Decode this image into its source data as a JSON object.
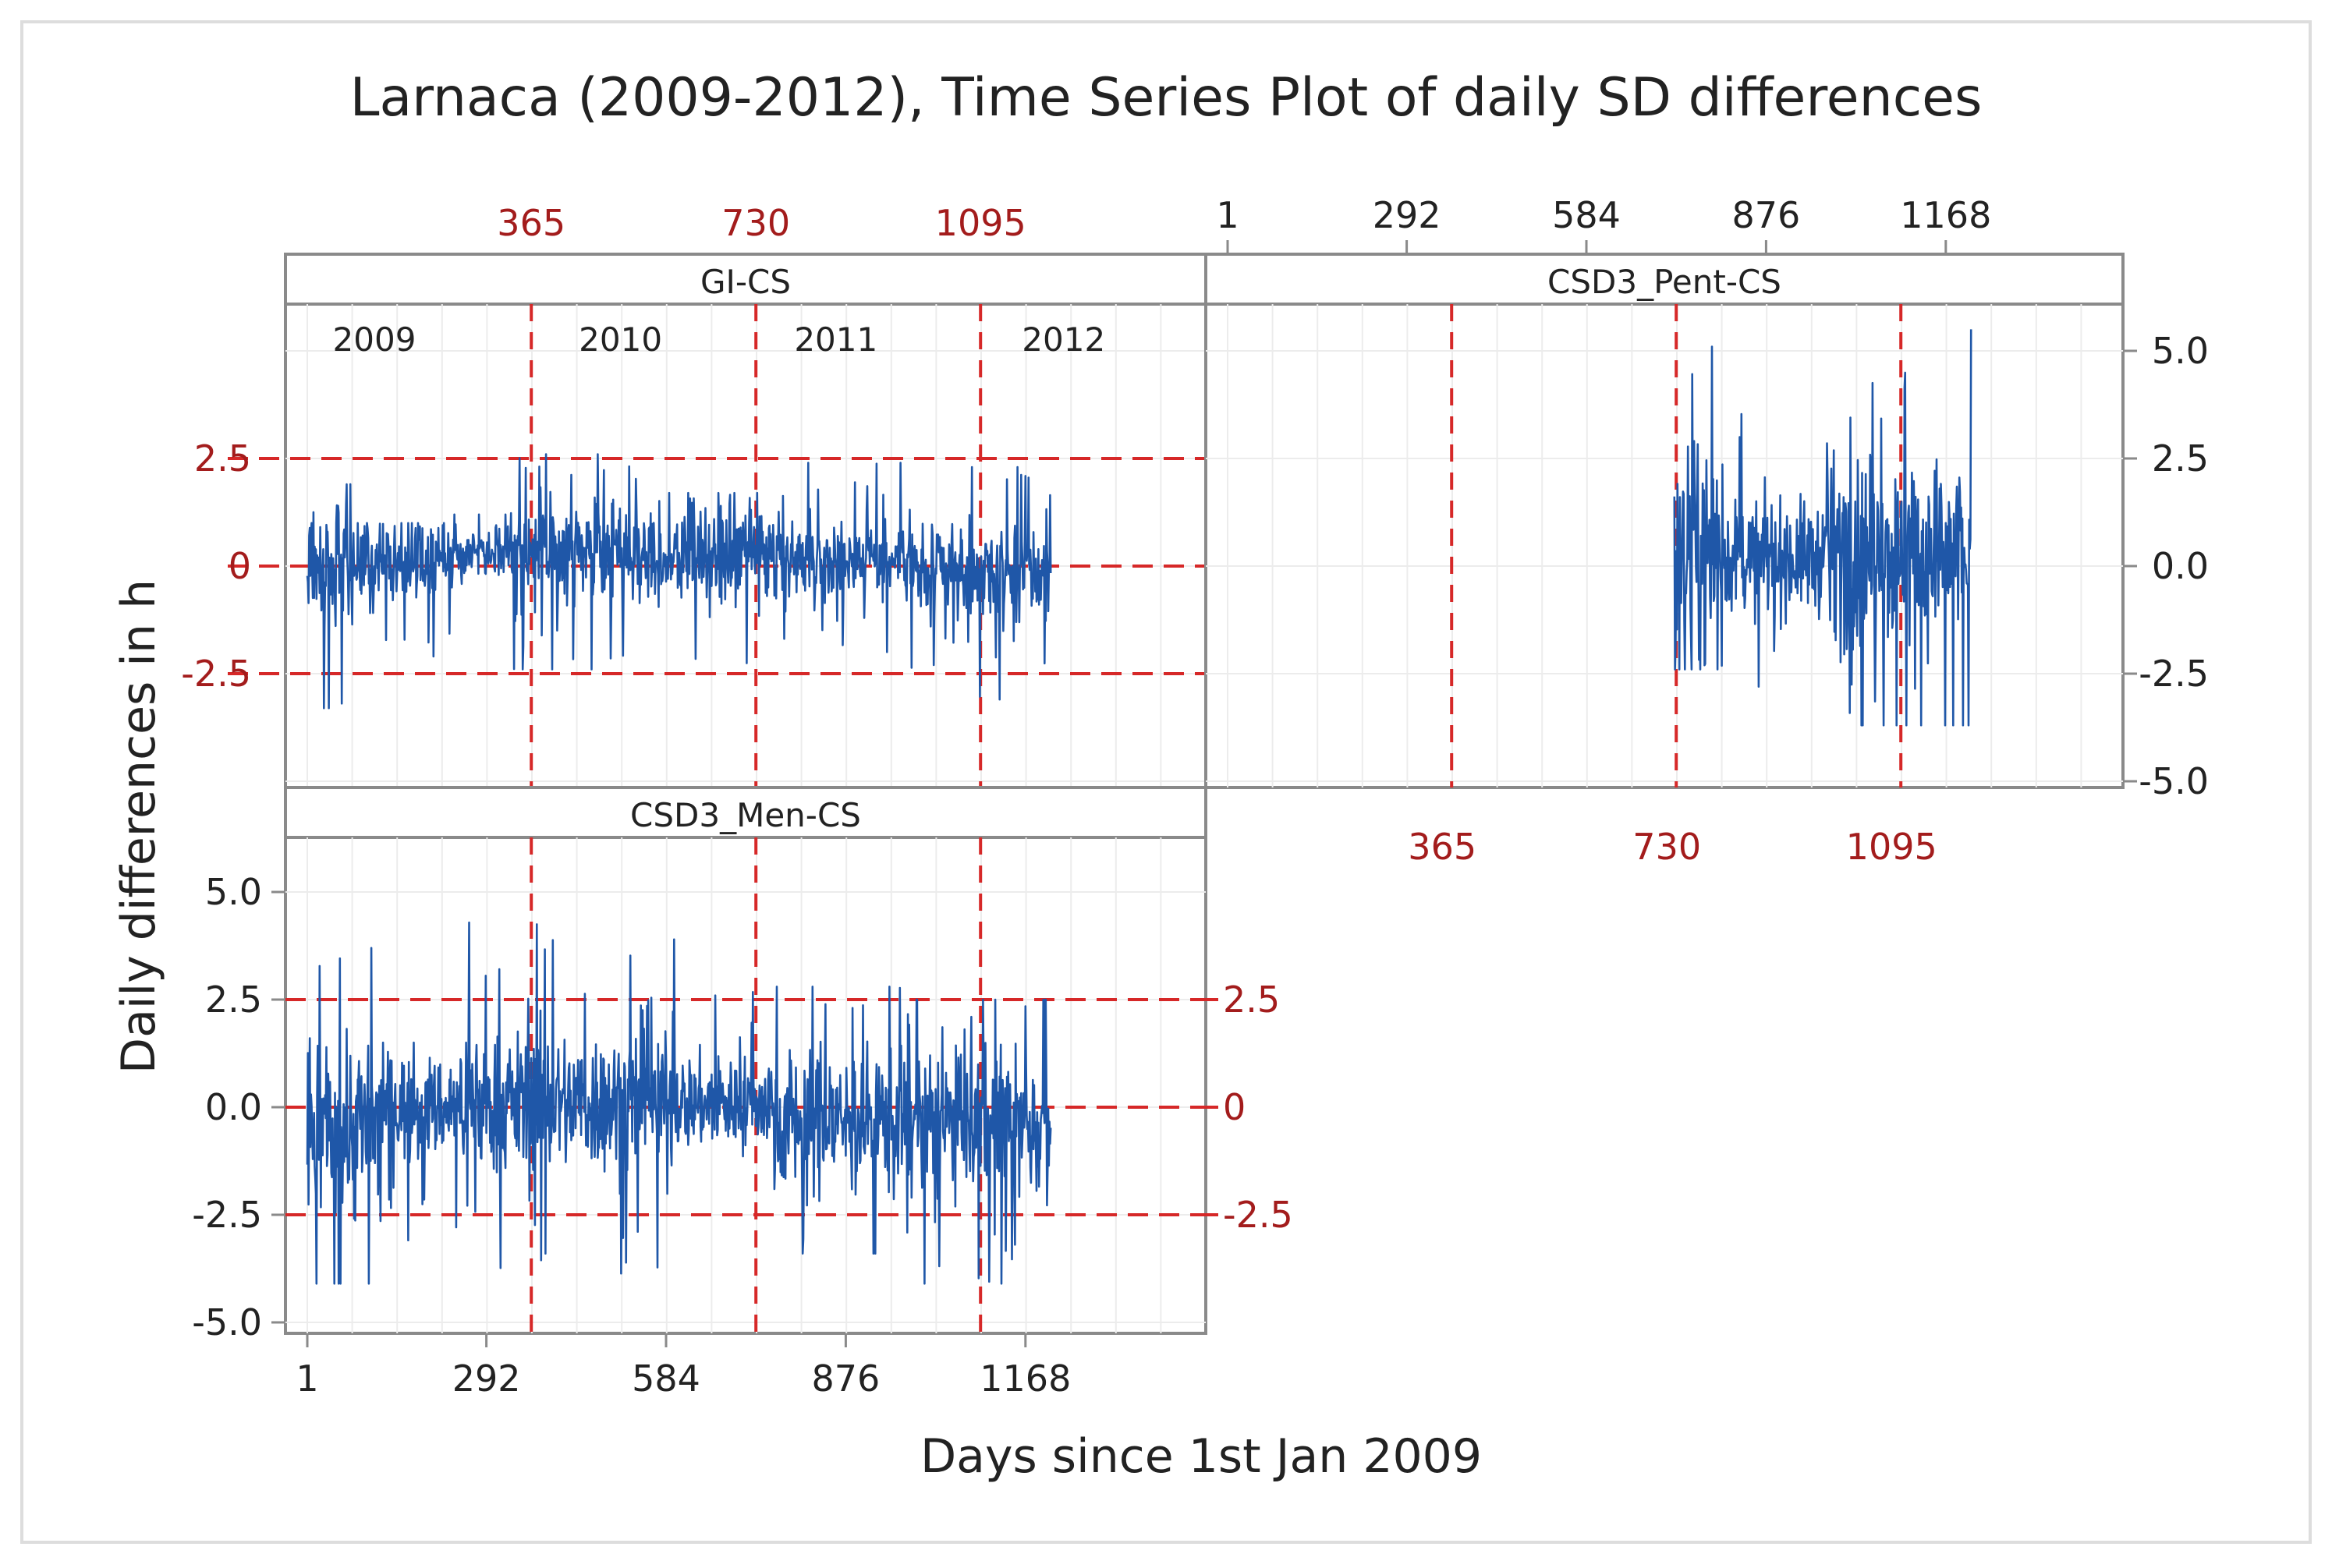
{
  "figure": {
    "title": "Larnaca (2009-2012), Time Series Plot of daily SD differences",
    "ylabel": "Daily differences in h",
    "xlabel": "Days since 1st Jan 2009"
  },
  "colors": {
    "series": "#1f57a8",
    "reference": "#d62828",
    "reference_text": "#a31c1c",
    "frame": "#8a8a8a",
    "grid": "#ececec",
    "text": "#222222"
  },
  "chart_data": {
    "type": "line",
    "subtype": "paneled time series",
    "x_range": [
      1,
      1461
    ],
    "y_range": [
      -6,
      6
    ],
    "x_ticks": [
      1,
      292,
      584,
      876,
      1168
    ],
    "y_ticks_primary": [
      "5.0",
      "2.5",
      "0.0",
      "-2.5",
      "-5.0"
    ],
    "reference_lines": {
      "x": [
        365,
        730,
        1095
      ],
      "x_labels": [
        "365",
        "730",
        "1095"
      ],
      "y": [
        2.5,
        0,
        -2.5
      ],
      "y_labels": [
        "2.5",
        "0",
        "-2.5"
      ]
    },
    "year_labels": [
      {
        "label": "2009",
        "x": 110
      },
      {
        "label": "2010",
        "x": 510
      },
      {
        "label": "2011",
        "x": 860
      },
      {
        "label": "2012",
        "x": 1230
      }
    ],
    "grid": true,
    "panels": [
      {
        "name": "GI-CS",
        "data_range": [
          1,
          1210
        ],
        "observed_range": [
          -3.3,
          2.6
        ],
        "segments": [
          {
            "from": 1,
            "to": 80,
            "level": 0.0,
            "spread": 0.7,
            "min": -3.3,
            "max": 1.9
          },
          {
            "from": 80,
            "to": 240,
            "level": 0.1,
            "spread": 0.45,
            "min": -2.1,
            "max": 1.0
          },
          {
            "from": 240,
            "to": 330,
            "level": 0.4,
            "spread": 0.3,
            "min": -0.6,
            "max": 1.2
          },
          {
            "from": 330,
            "to": 560,
            "level": 0.3,
            "spread": 0.55,
            "min": -2.4,
            "max": 2.6
          },
          {
            "from": 560,
            "to": 760,
            "level": 0.2,
            "spread": 0.5,
            "min": -2.4,
            "max": 1.7
          },
          {
            "from": 760,
            "to": 980,
            "level": 0.2,
            "spread": 0.45,
            "min": -2.3,
            "max": 2.4
          },
          {
            "from": 980,
            "to": 1210,
            "level": -0.2,
            "spread": 0.55,
            "min": -3.1,
            "max": 2.3
          }
        ]
      },
      {
        "name": "CSD3_Pent-CS",
        "data_range": [
          727,
          1210
        ],
        "observed_range": [
          -3.7,
          5.5
        ],
        "segments": [
          {
            "from": 727,
            "to": 800,
            "level": 0.3,
            "spread": 1.3,
            "min": -2.4,
            "max": 5.1
          },
          {
            "from": 800,
            "to": 980,
            "level": 0.2,
            "spread": 0.65,
            "min": -2.8,
            "max": 3.9
          },
          {
            "from": 980,
            "to": 1210,
            "level": 0.3,
            "spread": 1.1,
            "min": -3.7,
            "max": 5.5
          }
        ]
      },
      {
        "name": "CSD3_Men-CS",
        "data_range": [
          1,
          1210
        ],
        "observed_range": [
          -4.7,
          4.5
        ],
        "segments": [
          {
            "from": 1,
            "to": 120,
            "level": -0.5,
            "spread": 1.1,
            "min": -4.1,
            "max": 3.7
          },
          {
            "from": 120,
            "to": 260,
            "level": 0.0,
            "spread": 0.6,
            "min": -3.3,
            "max": 1.5
          },
          {
            "from": 260,
            "to": 600,
            "level": 0.1,
            "spread": 0.8,
            "min": -4.7,
            "max": 4.5
          },
          {
            "from": 600,
            "to": 760,
            "level": 0.1,
            "spread": 0.55,
            "min": -3.1,
            "max": 3.3
          },
          {
            "from": 760,
            "to": 980,
            "level": -0.3,
            "spread": 0.85,
            "min": -3.4,
            "max": 2.8
          },
          {
            "from": 980,
            "to": 1210,
            "level": -0.4,
            "spread": 0.85,
            "min": -4.1,
            "max": 2.5
          }
        ]
      }
    ]
  }
}
